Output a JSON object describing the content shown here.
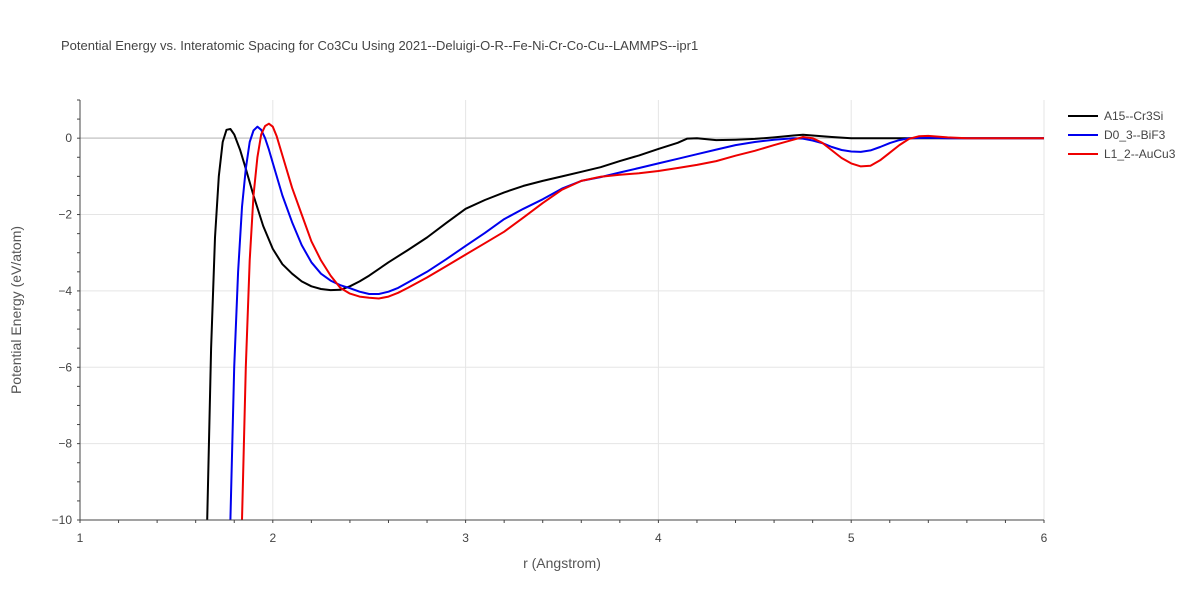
{
  "chart_data": {
    "type": "line",
    "title": "Potential Energy vs. Interatomic Spacing for Co3Cu Using 2021--Deluigi-O-R--Fe-Ni-Cr-Co-Cu--LAMMPS--ipr1",
    "xlabel": "r (Angstrom)",
    "ylabel": "Potential Energy (eV/atom)",
    "xlim": [
      1,
      6
    ],
    "ylim": [
      -10,
      1
    ],
    "xticks": [
      1,
      2,
      3,
      4,
      5,
      6
    ],
    "yticks": [
      -10,
      -8,
      -6,
      -4,
      -2,
      0
    ],
    "grid": true,
    "legend_position": "top-right",
    "series": [
      {
        "name": "A15--Cr3Si",
        "color": "#000000",
        "points": [
          [
            1.66,
            -10
          ],
          [
            1.68,
            -5.5
          ],
          [
            1.7,
            -2.6
          ],
          [
            1.72,
            -1.0
          ],
          [
            1.74,
            -0.1
          ],
          [
            1.76,
            0.22
          ],
          [
            1.78,
            0.24
          ],
          [
            1.8,
            0.1
          ],
          [
            1.83,
            -0.3
          ],
          [
            1.86,
            -0.8
          ],
          [
            1.9,
            -1.5
          ],
          [
            1.95,
            -2.3
          ],
          [
            2.0,
            -2.9
          ],
          [
            2.05,
            -3.3
          ],
          [
            2.1,
            -3.55
          ],
          [
            2.15,
            -3.75
          ],
          [
            2.2,
            -3.88
          ],
          [
            2.25,
            -3.95
          ],
          [
            2.3,
            -3.98
          ],
          [
            2.35,
            -3.97
          ],
          [
            2.4,
            -3.88
          ],
          [
            2.45,
            -3.75
          ],
          [
            2.5,
            -3.6
          ],
          [
            2.6,
            -3.25
          ],
          [
            2.7,
            -2.93
          ],
          [
            2.8,
            -2.6
          ],
          [
            2.9,
            -2.22
          ],
          [
            3.0,
            -1.85
          ],
          [
            3.1,
            -1.62
          ],
          [
            3.2,
            -1.42
          ],
          [
            3.3,
            -1.25
          ],
          [
            3.4,
            -1.12
          ],
          [
            3.5,
            -1.0
          ],
          [
            3.6,
            -0.88
          ],
          [
            3.7,
            -0.76
          ],
          [
            3.8,
            -0.6
          ],
          [
            3.9,
            -0.45
          ],
          [
            4.0,
            -0.28
          ],
          [
            4.1,
            -0.12
          ],
          [
            4.15,
            -0.01
          ],
          [
            4.2,
            0.0
          ],
          [
            4.3,
            -0.05
          ],
          [
            4.4,
            -0.04
          ],
          [
            4.5,
            -0.02
          ],
          [
            4.6,
            0.02
          ],
          [
            4.7,
            0.07
          ],
          [
            4.75,
            0.09
          ],
          [
            4.8,
            0.07
          ],
          [
            4.9,
            0.03
          ],
          [
            5.0,
            0.0
          ],
          [
            5.5,
            0.0
          ],
          [
            6.0,
            0.0
          ]
        ]
      },
      {
        "name": "D0_3--BiF3",
        "color": "#0000ee",
        "points": [
          [
            1.78,
            -10
          ],
          [
            1.79,
            -8.0
          ],
          [
            1.8,
            -6.0
          ],
          [
            1.82,
            -3.5
          ],
          [
            1.84,
            -1.8
          ],
          [
            1.86,
            -0.8
          ],
          [
            1.88,
            -0.1
          ],
          [
            1.9,
            0.2
          ],
          [
            1.92,
            0.3
          ],
          [
            1.94,
            0.22
          ],
          [
            1.96,
            0.0
          ],
          [
            1.98,
            -0.3
          ],
          [
            2.0,
            -0.65
          ],
          [
            2.05,
            -1.5
          ],
          [
            2.1,
            -2.2
          ],
          [
            2.15,
            -2.8
          ],
          [
            2.2,
            -3.25
          ],
          [
            2.25,
            -3.55
          ],
          [
            2.3,
            -3.73
          ],
          [
            2.35,
            -3.85
          ],
          [
            2.4,
            -3.93
          ],
          [
            2.45,
            -4.02
          ],
          [
            2.5,
            -4.08
          ],
          [
            2.55,
            -4.08
          ],
          [
            2.6,
            -4.02
          ],
          [
            2.65,
            -3.92
          ],
          [
            2.7,
            -3.78
          ],
          [
            2.8,
            -3.5
          ],
          [
            2.9,
            -3.17
          ],
          [
            3.0,
            -2.82
          ],
          [
            3.1,
            -2.48
          ],
          [
            3.2,
            -2.12
          ],
          [
            3.3,
            -1.85
          ],
          [
            3.4,
            -1.6
          ],
          [
            3.5,
            -1.32
          ],
          [
            3.6,
            -1.12
          ],
          [
            3.7,
            -1.02
          ],
          [
            3.8,
            -0.9
          ],
          [
            3.9,
            -0.78
          ],
          [
            4.0,
            -0.66
          ],
          [
            4.1,
            -0.54
          ],
          [
            4.2,
            -0.42
          ],
          [
            4.3,
            -0.3
          ],
          [
            4.4,
            -0.18
          ],
          [
            4.5,
            -0.1
          ],
          [
            4.6,
            -0.04
          ],
          [
            4.7,
            0.0
          ],
          [
            4.75,
            -0.01
          ],
          [
            4.8,
            -0.06
          ],
          [
            4.85,
            -0.13
          ],
          [
            4.9,
            -0.23
          ],
          [
            4.95,
            -0.31
          ],
          [
            5.0,
            -0.35
          ],
          [
            5.05,
            -0.36
          ],
          [
            5.1,
            -0.32
          ],
          [
            5.15,
            -0.23
          ],
          [
            5.2,
            -0.13
          ],
          [
            5.25,
            -0.05
          ],
          [
            5.3,
            0.0
          ],
          [
            5.4,
            0.01
          ],
          [
            5.5,
            0.0
          ],
          [
            6.0,
            0.0
          ]
        ]
      },
      {
        "name": "L1_2--AuCu3",
        "color": "#ee0000",
        "points": [
          [
            1.84,
            -10
          ],
          [
            1.86,
            -6.0
          ],
          [
            1.88,
            -3.2
          ],
          [
            1.9,
            -1.5
          ],
          [
            1.92,
            -0.5
          ],
          [
            1.94,
            0.1
          ],
          [
            1.96,
            0.32
          ],
          [
            1.98,
            0.38
          ],
          [
            2.0,
            0.3
          ],
          [
            2.02,
            0.05
          ],
          [
            2.05,
            -0.45
          ],
          [
            2.1,
            -1.3
          ],
          [
            2.15,
            -2.0
          ],
          [
            2.2,
            -2.7
          ],
          [
            2.25,
            -3.2
          ],
          [
            2.3,
            -3.6
          ],
          [
            2.35,
            -3.92
          ],
          [
            2.4,
            -4.07
          ],
          [
            2.45,
            -4.15
          ],
          [
            2.5,
            -4.18
          ],
          [
            2.55,
            -4.2
          ],
          [
            2.6,
            -4.15
          ],
          [
            2.65,
            -4.05
          ],
          [
            2.7,
            -3.92
          ],
          [
            2.8,
            -3.65
          ],
          [
            2.9,
            -3.35
          ],
          [
            3.0,
            -3.05
          ],
          [
            3.1,
            -2.75
          ],
          [
            3.2,
            -2.45
          ],
          [
            3.3,
            -2.08
          ],
          [
            3.4,
            -1.7
          ],
          [
            3.5,
            -1.35
          ],
          [
            3.6,
            -1.12
          ],
          [
            3.7,
            -1.01
          ],
          [
            3.8,
            -0.96
          ],
          [
            3.9,
            -0.92
          ],
          [
            4.0,
            -0.86
          ],
          [
            4.1,
            -0.78
          ],
          [
            4.2,
            -0.7
          ],
          [
            4.3,
            -0.6
          ],
          [
            4.4,
            -0.46
          ],
          [
            4.5,
            -0.33
          ],
          [
            4.6,
            -0.18
          ],
          [
            4.7,
            -0.04
          ],
          [
            4.75,
            0.03
          ],
          [
            4.8,
            0.0
          ],
          [
            4.85,
            -0.12
          ],
          [
            4.9,
            -0.32
          ],
          [
            4.95,
            -0.52
          ],
          [
            5.0,
            -0.66
          ],
          [
            5.05,
            -0.74
          ],
          [
            5.1,
            -0.72
          ],
          [
            5.15,
            -0.58
          ],
          [
            5.2,
            -0.38
          ],
          [
            5.25,
            -0.18
          ],
          [
            5.3,
            -0.02
          ],
          [
            5.35,
            0.05
          ],
          [
            5.4,
            0.06
          ],
          [
            5.5,
            0.02
          ],
          [
            5.6,
            0.0
          ],
          [
            6.0,
            0.0
          ]
        ]
      }
    ]
  }
}
